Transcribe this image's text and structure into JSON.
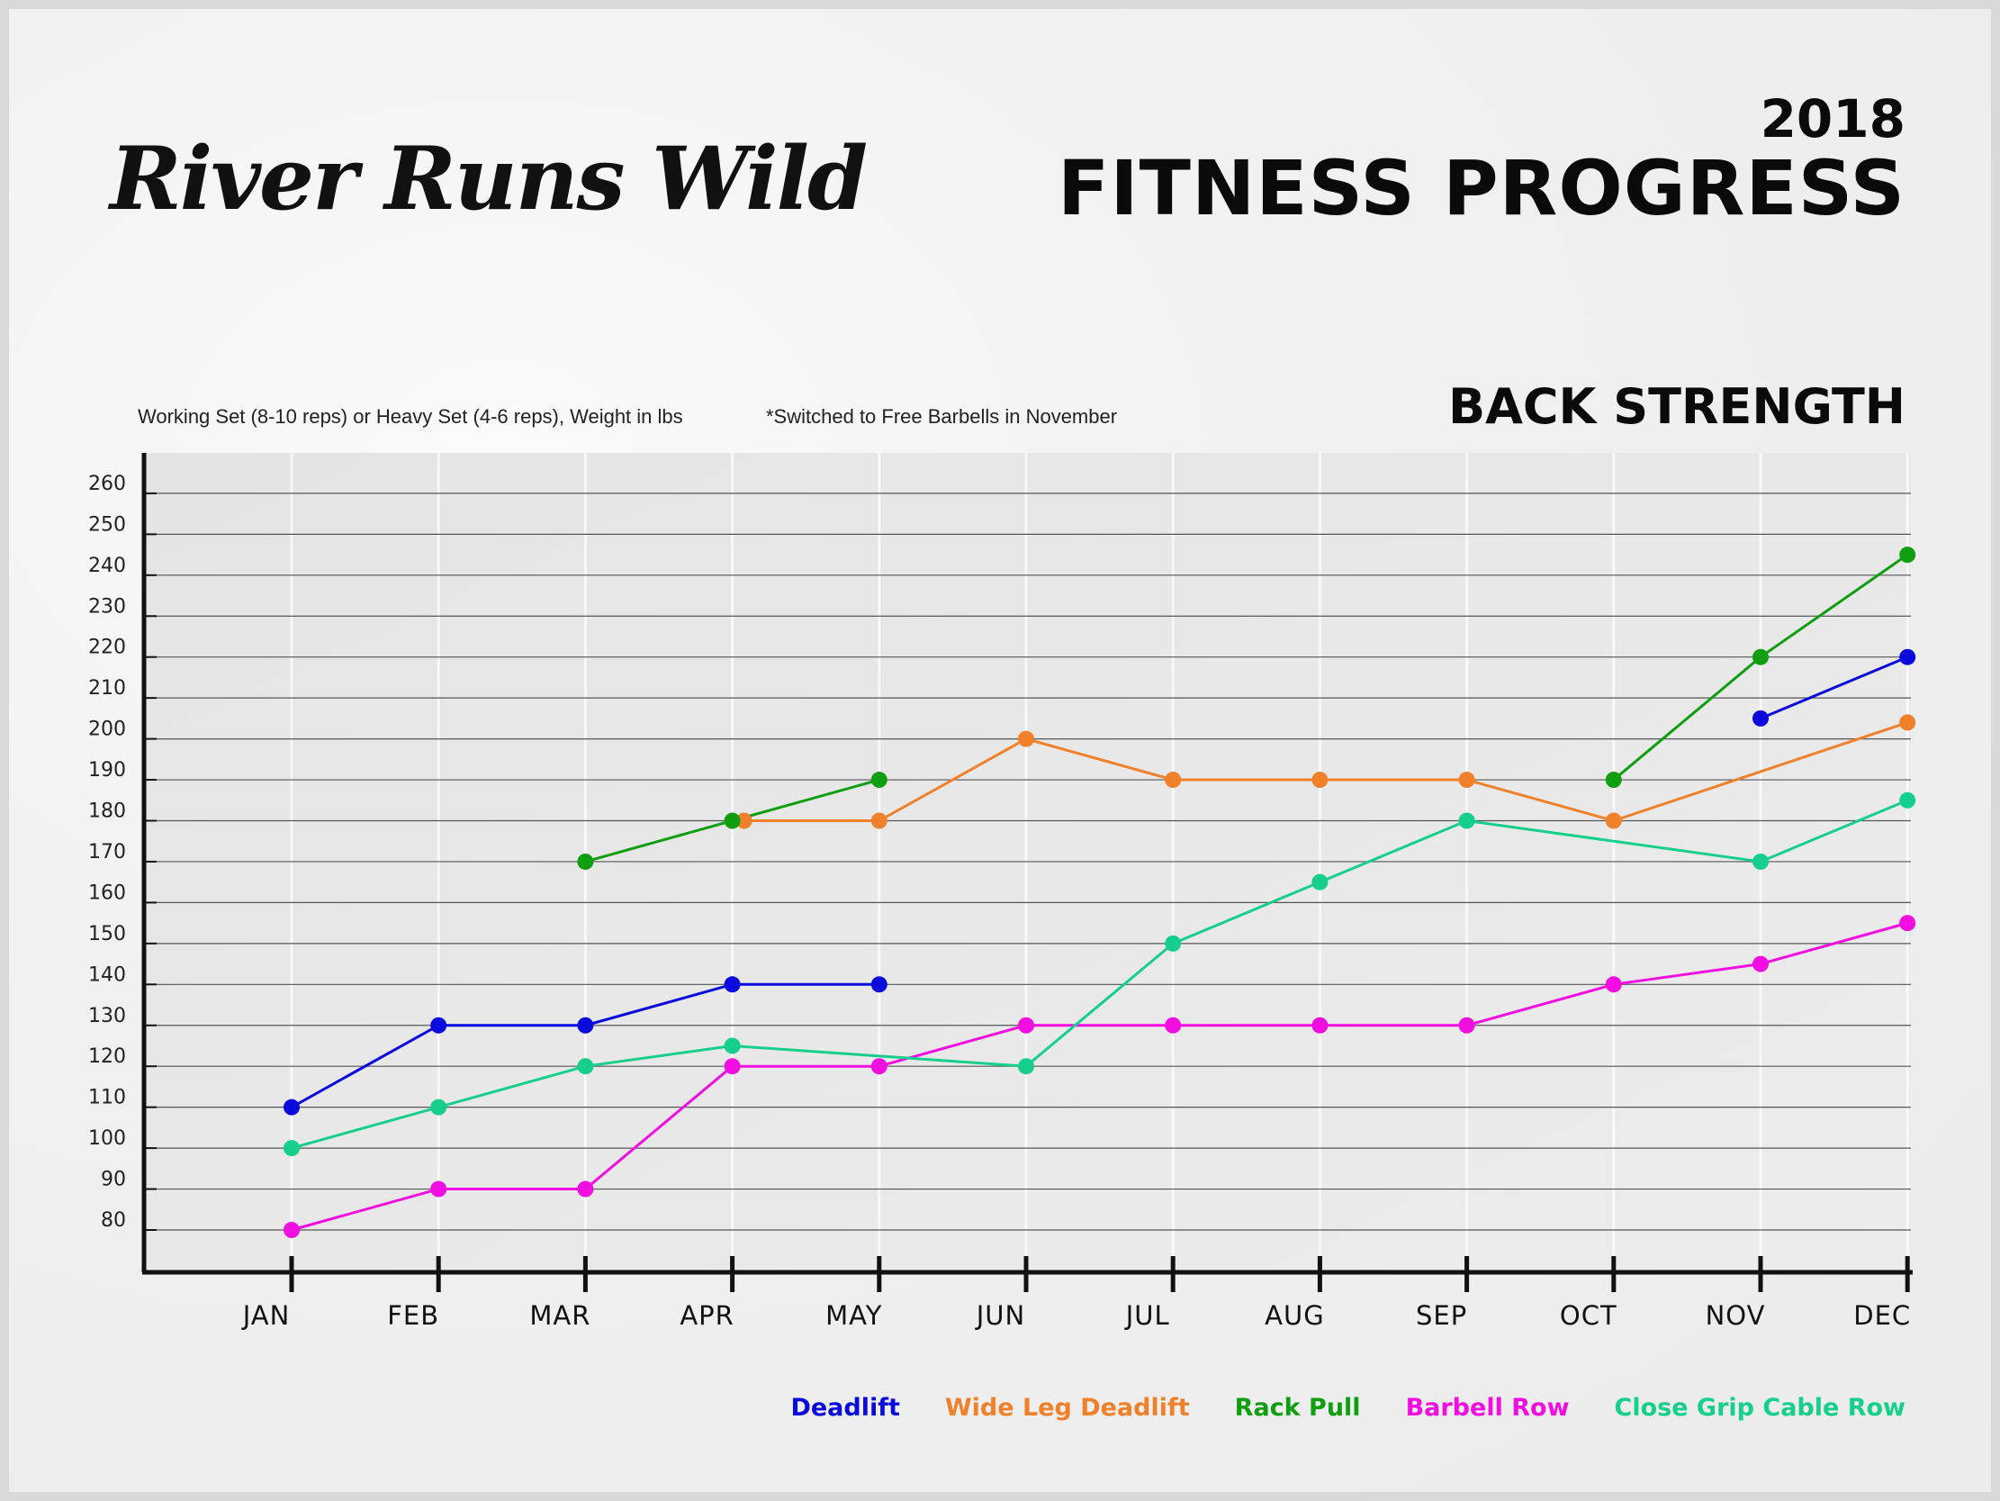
{
  "brand": {
    "name": "River Runs Wild"
  },
  "header": {
    "year": "2018",
    "title": "FITNESS PROGRESS"
  },
  "chart_data": {
    "type": "line",
    "title": "BACK STRENGTH",
    "notes": [
      "Working Set (8-10 reps) or Heavy Set (4-6 reps), Weight in lbs",
      "*Switched to Free Barbells in November"
    ],
    "categories": [
      "JAN",
      "FEB",
      "MAR",
      "APR",
      "MAY",
      "JUN",
      "JUL",
      "AUG",
      "SEP",
      "OCT",
      "NOV",
      "DEC"
    ],
    "yticks": [
      80,
      90,
      100,
      110,
      120,
      130,
      140,
      150,
      160,
      170,
      180,
      190,
      200,
      210,
      220,
      230,
      240,
      250,
      260
    ],
    "ylim": [
      70,
      265
    ],
    "grid": true,
    "legend_position": "bottom-right",
    "series": [
      {
        "name": "Deadlift",
        "color": "#0a0adc",
        "values": [
          110,
          130,
          130,
          140,
          140,
          null,
          null,
          null,
          null,
          null,
          205,
          220
        ]
      },
      {
        "name": "Wide Leg Deadlift",
        "color": "#f0812a",
        "values": [
          null,
          null,
          null,
          180,
          180,
          200,
          190,
          190,
          190,
          180,
          null,
          204
        ]
      },
      {
        "name": "Rack Pull",
        "color": "#0f9e0f",
        "values": [
          null,
          null,
          170,
          180,
          190,
          null,
          null,
          null,
          null,
          190,
          220,
          245
        ]
      },
      {
        "name": "Barbell Row",
        "color": "#f20ee0",
        "values": [
          80,
          90,
          90,
          120,
          120,
          130,
          130,
          130,
          130,
          140,
          145,
          155
        ]
      },
      {
        "name": "Close Grip Cable Row",
        "color": "#16cf8c",
        "values": [
          100,
          110,
          120,
          125,
          null,
          120,
          150,
          165,
          180,
          null,
          170,
          185
        ]
      }
    ],
    "segments": [
      {
        "series": 0,
        "points": [
          [
            0,
            110
          ],
          [
            1,
            130
          ],
          [
            2,
            130
          ],
          [
            3,
            140
          ],
          [
            4,
            140
          ]
        ]
      },
      {
        "series": 0,
        "points": [
          [
            10,
            205
          ],
          [
            11,
            220
          ]
        ]
      },
      {
        "series": 1,
        "points": [
          [
            3.08,
            180
          ],
          [
            4,
            180
          ],
          [
            5,
            200
          ],
          [
            6,
            190
          ],
          [
            7,
            190
          ],
          [
            8,
            190
          ],
          [
            9,
            180
          ],
          [
            11,
            204
          ]
        ]
      },
      {
        "series": 2,
        "points": [
          [
            2,
            170
          ],
          [
            3,
            180
          ],
          [
            4,
            190
          ]
        ]
      },
      {
        "series": 2,
        "points": [
          [
            9,
            190
          ],
          [
            10,
            220
          ],
          [
            11,
            245
          ]
        ]
      },
      {
        "series": 3,
        "points": [
          [
            0,
            80
          ],
          [
            1,
            90
          ],
          [
            2,
            90
          ],
          [
            3,
            120
          ],
          [
            4,
            120
          ],
          [
            5,
            130
          ],
          [
            6,
            130
          ],
          [
            7,
            130
          ],
          [
            8,
            130
          ],
          [
            9,
            140
          ],
          [
            10,
            145
          ],
          [
            11,
            155
          ]
        ]
      },
      {
        "series": 4,
        "points": [
          [
            0,
            100
          ],
          [
            1,
            110
          ],
          [
            2,
            120
          ],
          [
            3,
            125
          ],
          [
            5,
            120
          ],
          [
            6,
            150
          ],
          [
            7,
            165
          ],
          [
            8,
            180
          ],
          [
            10,
            170
          ],
          [
            11,
            185
          ]
        ]
      }
    ],
    "markers": [
      {
        "series": 0,
        "points": [
          [
            0,
            110
          ],
          [
            1,
            130
          ],
          [
            2,
            130
          ],
          [
            3,
            140
          ],
          [
            4,
            140
          ],
          [
            10,
            205
          ],
          [
            11,
            220
          ]
        ]
      },
      {
        "series": 1,
        "points": [
          [
            3.08,
            180
          ],
          [
            4,
            180
          ],
          [
            5,
            200
          ],
          [
            6,
            190
          ],
          [
            7,
            190
          ],
          [
            8,
            190
          ],
          [
            9,
            180
          ],
          [
            11,
            204
          ]
        ]
      },
      {
        "series": 2,
        "points": [
          [
            2,
            170
          ],
          [
            3,
            180
          ],
          [
            4,
            190
          ],
          [
            9,
            190
          ],
          [
            10,
            220
          ],
          [
            11,
            245
          ]
        ]
      },
      {
        "series": 3,
        "points": [
          [
            0,
            80
          ],
          [
            1,
            90
          ],
          [
            2,
            90
          ],
          [
            3,
            120
          ],
          [
            4,
            120
          ],
          [
            5,
            130
          ],
          [
            6,
            130
          ],
          [
            7,
            130
          ],
          [
            8,
            130
          ],
          [
            9,
            140
          ],
          [
            10,
            145
          ],
          [
            11,
            155
          ]
        ]
      },
      {
        "series": 4,
        "points": [
          [
            0,
            100
          ],
          [
            1,
            110
          ],
          [
            2,
            120
          ],
          [
            3,
            125
          ],
          [
            5,
            120
          ],
          [
            6,
            150
          ],
          [
            7,
            165
          ],
          [
            8,
            180
          ],
          [
            10,
            170
          ],
          [
            11,
            185
          ]
        ]
      }
    ]
  }
}
